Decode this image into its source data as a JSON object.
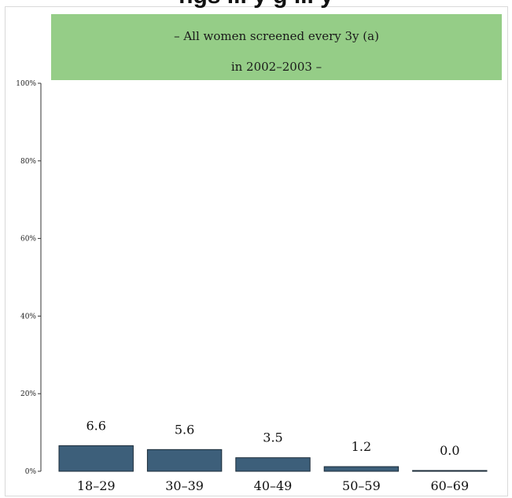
{
  "header": {
    "title_fragment": "ngs ... y g ... y"
  },
  "banner": {
    "line1": "– All women screened every 3y (a)",
    "line2": "in 2002–2003 –",
    "color": "#95cd87"
  },
  "chart_data": {
    "type": "bar",
    "categories": [
      "18–29",
      "30–39",
      "40–49",
      "50–59",
      "60–69"
    ],
    "values": [
      6.6,
      5.6,
      3.5,
      1.2,
      0.0
    ],
    "value_labels": [
      "6.6",
      "5.6",
      "3.5",
      "1.2",
      "0.0"
    ],
    "ylim": [
      0,
      100
    ],
    "yticks": [
      0,
      20,
      40,
      60,
      80,
      100
    ],
    "ytick_labels": [
      "0%",
      "20%",
      "40%",
      "60%",
      "80%",
      "100%"
    ],
    "bar_color": "#3d5f7a",
    "grid": false,
    "legend": "none"
  }
}
